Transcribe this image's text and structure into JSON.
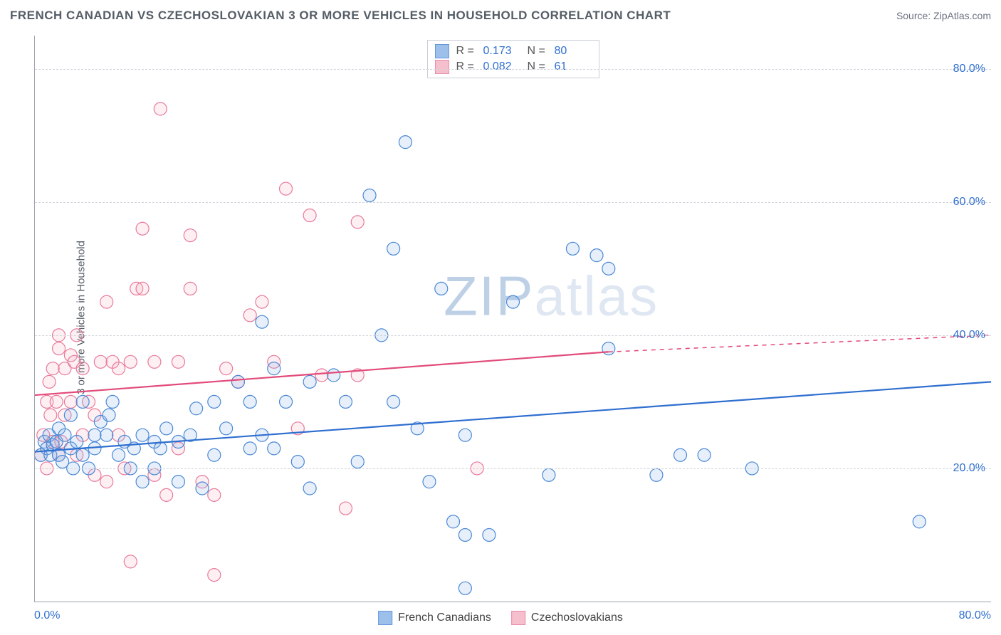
{
  "title": "FRENCH CANADIAN VS CZECHOSLOVAKIAN 3 OR MORE VEHICLES IN HOUSEHOLD CORRELATION CHART",
  "source_label": "Source: ZipAtlas.com",
  "y_axis_label": "3 or more Vehicles in Household",
  "watermark": "ZIPatlas",
  "chart": {
    "type": "scatter",
    "xlim": [
      0,
      80
    ],
    "ylim": [
      0,
      85
    ],
    "x_ticks": [
      {
        "v": 0,
        "label": "0.0%"
      },
      {
        "v": 80,
        "label": "80.0%"
      }
    ],
    "y_ticks": [
      {
        "v": 20,
        "label": "20.0%"
      },
      {
        "v": 40,
        "label": "40.0%"
      },
      {
        "v": 60,
        "label": "60.0%"
      },
      {
        "v": 80,
        "label": "80.0%"
      }
    ],
    "grid_color": "#d7dbe0",
    "background_color": "#ffffff",
    "marker_radius": 9,
    "marker_stroke_width": 1.2,
    "marker_fill_opacity": 0.22,
    "axis_color": "#9ca3af",
    "tick_label_color": "#2f6fd0",
    "label_fontsize": 15,
    "title_fontsize": 17
  },
  "series": {
    "blue": {
      "name": "French Canadians",
      "stroke": "#4a88d6",
      "fill": "#8cb6e8",
      "R": "0.173",
      "N": "80",
      "trend": {
        "x1": 0,
        "y1": 22.5,
        "x2": 80,
        "y2": 33,
        "dash_from_x": 80,
        "width": 2.2,
        "color": "#2f6fd0"
      },
      "points": [
        [
          0.5,
          22
        ],
        [
          0.8,
          24
        ],
        [
          1,
          23
        ],
        [
          1.2,
          25
        ],
        [
          1.3,
          22
        ],
        [
          1.5,
          23.5
        ],
        [
          1.8,
          24
        ],
        [
          2,
          22
        ],
        [
          2,
          26
        ],
        [
          2.3,
          21
        ],
        [
          2.5,
          25
        ],
        [
          3,
          23
        ],
        [
          3,
          28
        ],
        [
          3.2,
          20
        ],
        [
          3.5,
          24
        ],
        [
          4,
          30
        ],
        [
          4,
          22
        ],
        [
          4.5,
          20
        ],
        [
          5,
          23
        ],
        [
          5,
          25
        ],
        [
          5.5,
          27
        ],
        [
          6,
          25
        ],
        [
          6.2,
          28
        ],
        [
          6.5,
          30
        ],
        [
          7,
          22
        ],
        [
          7.5,
          24
        ],
        [
          8,
          20
        ],
        [
          8.3,
          23
        ],
        [
          9,
          25
        ],
        [
          9,
          18
        ],
        [
          10,
          24
        ],
        [
          10,
          20
        ],
        [
          10.5,
          23
        ],
        [
          11,
          26
        ],
        [
          12,
          24
        ],
        [
          12,
          18
        ],
        [
          13,
          25
        ],
        [
          13.5,
          29
        ],
        [
          14,
          17
        ],
        [
          15,
          30
        ],
        [
          15,
          22
        ],
        [
          16,
          26
        ],
        [
          17,
          33
        ],
        [
          18,
          30
        ],
        [
          18,
          23
        ],
        [
          19,
          42
        ],
        [
          19,
          25
        ],
        [
          20,
          35
        ],
        [
          20,
          23
        ],
        [
          21,
          30
        ],
        [
          22,
          21
        ],
        [
          23,
          33
        ],
        [
          23,
          17
        ],
        [
          25,
          34
        ],
        [
          26,
          30
        ],
        [
          27,
          21
        ],
        [
          28,
          61
        ],
        [
          29,
          40
        ],
        [
          30,
          30
        ],
        [
          30,
          53
        ],
        [
          31,
          69
        ],
        [
          32,
          26
        ],
        [
          33,
          18
        ],
        [
          34,
          47
        ],
        [
          35,
          12
        ],
        [
          36,
          25
        ],
        [
          36,
          10
        ],
        [
          36,
          2
        ],
        [
          38,
          10
        ],
        [
          40,
          45
        ],
        [
          43,
          19
        ],
        [
          45,
          53
        ],
        [
          47,
          52
        ],
        [
          48,
          50
        ],
        [
          48,
          38
        ],
        [
          52,
          19
        ],
        [
          54,
          22
        ],
        [
          56,
          22
        ],
        [
          60,
          20
        ],
        [
          74,
          12
        ]
      ]
    },
    "pink": {
      "name": "Czechoslovakians",
      "stroke": "#e87a9a",
      "fill": "#f4b4c6",
      "R": "0.082",
      "N": "61",
      "trend": {
        "x1": 0,
        "y1": 31,
        "x2": 48,
        "y2": 37.5,
        "dash_from_x": 48,
        "dash_to_x": 80,
        "dash_to_y": 40,
        "width": 2.2,
        "color": "#e24b7a"
      },
      "points": [
        [
          0.5,
          22
        ],
        [
          0.7,
          25
        ],
        [
          1,
          30
        ],
        [
          1,
          20
        ],
        [
          1.2,
          33
        ],
        [
          1.3,
          28
        ],
        [
          1.5,
          35
        ],
        [
          1.5,
          24
        ],
        [
          1.8,
          30
        ],
        [
          2,
          40
        ],
        [
          2,
          38
        ],
        [
          2,
          22
        ],
        [
          2.2,
          24
        ],
        [
          2.5,
          35
        ],
        [
          2.5,
          28
        ],
        [
          3,
          30
        ],
        [
          3,
          37
        ],
        [
          3.3,
          36
        ],
        [
          3.5,
          22
        ],
        [
          3.5,
          40
        ],
        [
          4,
          25
        ],
        [
          4,
          35
        ],
        [
          4.5,
          30
        ],
        [
          5,
          28
        ],
        [
          5,
          19
        ],
        [
          5.5,
          36
        ],
        [
          6,
          45
        ],
        [
          6,
          18
        ],
        [
          6.5,
          36
        ],
        [
          7,
          35
        ],
        [
          7,
          25
        ],
        [
          7.5,
          20
        ],
        [
          8,
          36
        ],
        [
          8,
          6
        ],
        [
          8.5,
          47
        ],
        [
          9,
          47
        ],
        [
          9,
          56
        ],
        [
          10,
          19
        ],
        [
          10,
          36
        ],
        [
          10.5,
          74
        ],
        [
          11,
          16
        ],
        [
          12,
          36
        ],
        [
          12,
          23
        ],
        [
          13,
          47
        ],
        [
          13,
          55
        ],
        [
          14,
          18
        ],
        [
          15,
          16
        ],
        [
          15,
          4
        ],
        [
          16,
          35
        ],
        [
          17,
          33
        ],
        [
          18,
          43
        ],
        [
          19,
          45
        ],
        [
          20,
          36
        ],
        [
          21,
          62
        ],
        [
          22,
          26
        ],
        [
          23,
          58
        ],
        [
          24,
          34
        ],
        [
          26,
          14
        ],
        [
          27,
          57
        ],
        [
          27,
          34
        ],
        [
          37,
          20
        ]
      ]
    }
  },
  "stats_box": {
    "rows": [
      {
        "swatch": "blue",
        "R": "0.173",
        "N": "80"
      },
      {
        "swatch": "pink",
        "R": "0.082",
        "N": "61"
      }
    ]
  },
  "bottom_legend": [
    {
      "swatch": "blue",
      "label": "French Canadians"
    },
    {
      "swatch": "pink",
      "label": "Czechoslovakians"
    }
  ]
}
